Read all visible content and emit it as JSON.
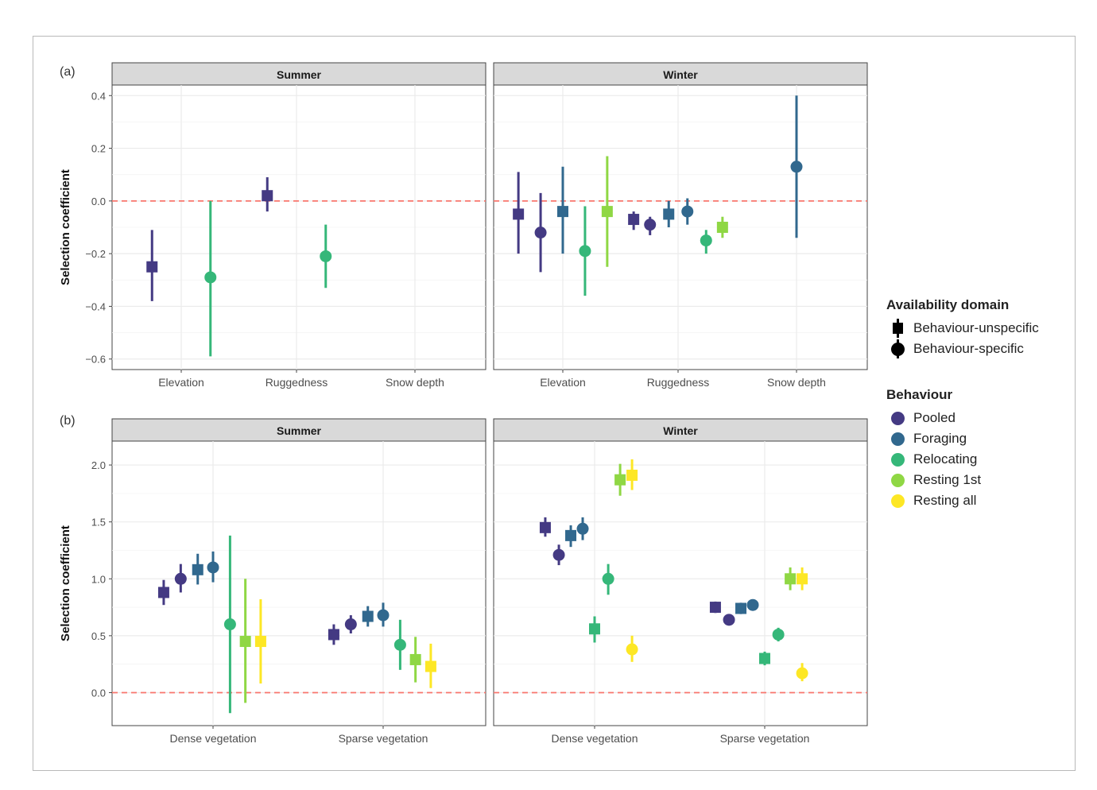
{
  "colors": {
    "Pooled": "#443a83",
    "Foraging": "#31688e",
    "Relocating": "#35b779",
    "Resting 1st": "#8fd744",
    "Resting all": "#fde725",
    "refline": "#f8766d",
    "strip_bg": "#d9d9d9",
    "grid": "#ebebeb"
  },
  "legend": {
    "domain_title": "Availability domain",
    "domain_items": [
      {
        "label": "Behaviour-unspecific",
        "shape": "square"
      },
      {
        "label": "Behaviour-specific",
        "shape": "circle"
      }
    ],
    "behaviour_title": "Behaviour",
    "behaviour_items": [
      "Pooled",
      "Foraging",
      "Relocating",
      "Resting 1st",
      "Resting all"
    ]
  },
  "chart_data": [
    {
      "type": "scatter",
      "panel_tag": "(a)",
      "ylabel": "Selection coefficient",
      "ylim": [
        -0.64,
        0.44
      ],
      "yticks": [
        -0.6,
        -0.4,
        -0.2,
        0.0,
        0.2,
        0.4
      ],
      "ytick_labels": [
        "−0.6",
        "−0.4",
        "−0.2",
        "0.0",
        "0.2",
        "0.4"
      ],
      "categories": [
        "Elevation",
        "Ruggedness",
        "Snow depth"
      ],
      "reference_line": 0,
      "grid": true,
      "facets": [
        {
          "label": "Summer",
          "points": [
            {
              "category": "Elevation",
              "offset": -0.25,
              "behaviour": "Pooled",
              "shape": "square",
              "y": -0.25,
              "lo": -0.38,
              "hi": -0.11
            },
            {
              "category": "Elevation",
              "offset": 0.25,
              "behaviour": "Relocating",
              "shape": "circle",
              "y": -0.29,
              "lo": -0.59,
              "hi": 0.0
            },
            {
              "category": "Ruggedness",
              "offset": -0.25,
              "behaviour": "Pooled",
              "shape": "square",
              "y": 0.02,
              "lo": -0.04,
              "hi": 0.09
            },
            {
              "category": "Ruggedness",
              "offset": 0.25,
              "behaviour": "Relocating",
              "shape": "circle",
              "y": -0.21,
              "lo": -0.33,
              "hi": -0.09
            }
          ]
        },
        {
          "label": "Winter",
          "points": [
            {
              "category": "Elevation",
              "offset": -0.38,
              "behaviour": "Pooled",
              "shape": "square",
              "y": -0.05,
              "lo": -0.2,
              "hi": 0.11
            },
            {
              "category": "Elevation",
              "offset": -0.19,
              "behaviour": "Pooled",
              "shape": "circle",
              "y": -0.12,
              "lo": -0.27,
              "hi": 0.03
            },
            {
              "category": "Elevation",
              "offset": 0.0,
              "behaviour": "Foraging",
              "shape": "square",
              "y": -0.04,
              "lo": -0.2,
              "hi": 0.13
            },
            {
              "category": "Elevation",
              "offset": 0.19,
              "behaviour": "Relocating",
              "shape": "circle",
              "y": -0.19,
              "lo": -0.36,
              "hi": -0.02
            },
            {
              "category": "Elevation",
              "offset": 0.38,
              "behaviour": "Resting 1st",
              "shape": "square",
              "y": -0.04,
              "lo": -0.25,
              "hi": 0.17
            },
            {
              "category": "Ruggedness",
              "offset": -0.38,
              "behaviour": "Pooled",
              "shape": "square",
              "y": -0.07,
              "lo": -0.11,
              "hi": -0.04
            },
            {
              "category": "Ruggedness",
              "offset": -0.24,
              "behaviour": "Pooled",
              "shape": "circle",
              "y": -0.09,
              "lo": -0.13,
              "hi": -0.06
            },
            {
              "category": "Ruggedness",
              "offset": -0.08,
              "behaviour": "Foraging",
              "shape": "square",
              "y": -0.05,
              "lo": -0.1,
              "hi": 0.0
            },
            {
              "category": "Ruggedness",
              "offset": 0.08,
              "behaviour": "Foraging",
              "shape": "circle",
              "y": -0.04,
              "lo": -0.09,
              "hi": 0.01
            },
            {
              "category": "Ruggedness",
              "offset": 0.24,
              "behaviour": "Relocating",
              "shape": "circle",
              "y": -0.15,
              "lo": -0.2,
              "hi": -0.11
            },
            {
              "category": "Ruggedness",
              "offset": 0.38,
              "behaviour": "Resting 1st",
              "shape": "square",
              "y": -0.1,
              "lo": -0.14,
              "hi": -0.06
            },
            {
              "category": "Snow depth",
              "offset": 0.0,
              "behaviour": "Foraging",
              "shape": "circle",
              "y": 0.13,
              "lo": -0.14,
              "hi": 0.4
            }
          ]
        }
      ]
    },
    {
      "type": "scatter",
      "panel_tag": "(b)",
      "ylabel": "Selection coefficient",
      "ylim": [
        -0.29,
        2.21
      ],
      "yticks": [
        0.0,
        0.5,
        1.0,
        1.5,
        2.0
      ],
      "ytick_labels": [
        "0.0",
        "0.5",
        "1.0",
        "1.5",
        "2.0"
      ],
      "categories": [
        "Dense vegetation",
        "Sparse vegetation"
      ],
      "reference_line": 0,
      "grid": true,
      "facets": [
        {
          "label": "Summer",
          "points": [
            {
              "category": "Dense vegetation",
              "offset": -0.29,
              "behaviour": "Pooled",
              "shape": "square",
              "y": 0.88,
              "lo": 0.77,
              "hi": 0.99
            },
            {
              "category": "Dense vegetation",
              "offset": -0.19,
              "behaviour": "Pooled",
              "shape": "circle",
              "y": 1.0,
              "lo": 0.88,
              "hi": 1.13
            },
            {
              "category": "Dense vegetation",
              "offset": -0.09,
              "behaviour": "Foraging",
              "shape": "square",
              "y": 1.08,
              "lo": 0.95,
              "hi": 1.22
            },
            {
              "category": "Dense vegetation",
              "offset": 0.0,
              "behaviour": "Foraging",
              "shape": "circle",
              "y": 1.1,
              "lo": 0.97,
              "hi": 1.24
            },
            {
              "category": "Dense vegetation",
              "offset": 0.1,
              "behaviour": "Relocating",
              "shape": "circle",
              "y": 0.6,
              "lo": -0.18,
              "hi": 1.38
            },
            {
              "category": "Dense vegetation",
              "offset": 0.19,
              "behaviour": "Resting 1st",
              "shape": "square",
              "y": 0.45,
              "lo": -0.09,
              "hi": 1.0
            },
            {
              "category": "Dense vegetation",
              "offset": 0.28,
              "behaviour": "Resting all",
              "shape": "square",
              "y": 0.45,
              "lo": 0.08,
              "hi": 0.82
            },
            {
              "category": "Sparse vegetation",
              "offset": -0.29,
              "behaviour": "Pooled",
              "shape": "square",
              "y": 0.51,
              "lo": 0.42,
              "hi": 0.6
            },
            {
              "category": "Sparse vegetation",
              "offset": -0.19,
              "behaviour": "Pooled",
              "shape": "circle",
              "y": 0.6,
              "lo": 0.52,
              "hi": 0.68
            },
            {
              "category": "Sparse vegetation",
              "offset": -0.09,
              "behaviour": "Foraging",
              "shape": "square",
              "y": 0.67,
              "lo": 0.58,
              "hi": 0.76
            },
            {
              "category": "Sparse vegetation",
              "offset": 0.0,
              "behaviour": "Foraging",
              "shape": "circle",
              "y": 0.68,
              "lo": 0.58,
              "hi": 0.79
            },
            {
              "category": "Sparse vegetation",
              "offset": 0.1,
              "behaviour": "Relocating",
              "shape": "circle",
              "y": 0.42,
              "lo": 0.2,
              "hi": 0.64
            },
            {
              "category": "Sparse vegetation",
              "offset": 0.19,
              "behaviour": "Resting 1st",
              "shape": "square",
              "y": 0.29,
              "lo": 0.09,
              "hi": 0.49
            },
            {
              "category": "Sparse vegetation",
              "offset": 0.28,
              "behaviour": "Resting all",
              "shape": "square",
              "y": 0.23,
              "lo": 0.04,
              "hi": 0.43
            }
          ]
        },
        {
          "label": "Winter",
          "points": [
            {
              "category": "Dense vegetation",
              "offset": -0.29,
              "behaviour": "Pooled",
              "shape": "square",
              "y": 1.45,
              "lo": 1.37,
              "hi": 1.54
            },
            {
              "category": "Dense vegetation",
              "offset": -0.21,
              "behaviour": "Pooled",
              "shape": "circle",
              "y": 1.21,
              "lo": 1.12,
              "hi": 1.3
            },
            {
              "category": "Dense vegetation",
              "offset": -0.14,
              "behaviour": "Foraging",
              "shape": "square",
              "y": 1.38,
              "lo": 1.28,
              "hi": 1.47
            },
            {
              "category": "Dense vegetation",
              "offset": -0.07,
              "behaviour": "Foraging",
              "shape": "circle",
              "y": 1.44,
              "lo": 1.34,
              "hi": 1.54
            },
            {
              "category": "Dense vegetation",
              "offset": 0.0,
              "behaviour": "Relocating",
              "shape": "square",
              "y": 0.56,
              "lo": 0.44,
              "hi": 0.67
            },
            {
              "category": "Dense vegetation",
              "offset": 0.08,
              "behaviour": "Relocating",
              "shape": "circle",
              "y": 1.0,
              "lo": 0.86,
              "hi": 1.13
            },
            {
              "category": "Dense vegetation",
              "offset": 0.15,
              "behaviour": "Resting 1st",
              "shape": "square",
              "y": 1.87,
              "lo": 1.73,
              "hi": 2.01
            },
            {
              "category": "Dense vegetation",
              "offset": 0.22,
              "behaviour": "Resting all",
              "shape": "circle",
              "y": 0.38,
              "lo": 0.27,
              "hi": 0.5
            },
            {
              "category": "Dense vegetation",
              "offset": 0.22,
              "behaviour": "Resting all",
              "shape": "square",
              "y": 1.91,
              "lo": 1.78,
              "hi": 2.05
            },
            {
              "category": "Sparse vegetation",
              "offset": -0.29,
              "behaviour": "Pooled",
              "shape": "square",
              "y": 0.75,
              "lo": 0.7,
              "hi": 0.8
            },
            {
              "category": "Sparse vegetation",
              "offset": -0.21,
              "behaviour": "Pooled",
              "shape": "circle",
              "y": 0.64,
              "lo": 0.59,
              "hi": 0.69
            },
            {
              "category": "Sparse vegetation",
              "offset": -0.14,
              "behaviour": "Foraging",
              "shape": "square",
              "y": 0.74,
              "lo": 0.69,
              "hi": 0.79
            },
            {
              "category": "Sparse vegetation",
              "offset": -0.07,
              "behaviour": "Foraging",
              "shape": "circle",
              "y": 0.77,
              "lo": 0.72,
              "hi": 0.82
            },
            {
              "category": "Sparse vegetation",
              "offset": 0.0,
              "behaviour": "Relocating",
              "shape": "square",
              "y": 0.3,
              "lo": 0.24,
              "hi": 0.36
            },
            {
              "category": "Sparse vegetation",
              "offset": 0.08,
              "behaviour": "Relocating",
              "shape": "circle",
              "y": 0.51,
              "lo": 0.45,
              "hi": 0.57
            },
            {
              "category": "Sparse vegetation",
              "offset": 0.15,
              "behaviour": "Resting 1st",
              "shape": "square",
              "y": 1.0,
              "lo": 0.9,
              "hi": 1.1
            },
            {
              "category": "Sparse vegetation",
              "offset": 0.22,
              "behaviour": "Resting all",
              "shape": "circle",
              "y": 0.17,
              "lo": 0.1,
              "hi": 0.26
            },
            {
              "category": "Sparse vegetation",
              "offset": 0.22,
              "behaviour": "Resting all",
              "shape": "square",
              "y": 1.0,
              "lo": 0.9,
              "hi": 1.1
            }
          ]
        }
      ]
    }
  ]
}
